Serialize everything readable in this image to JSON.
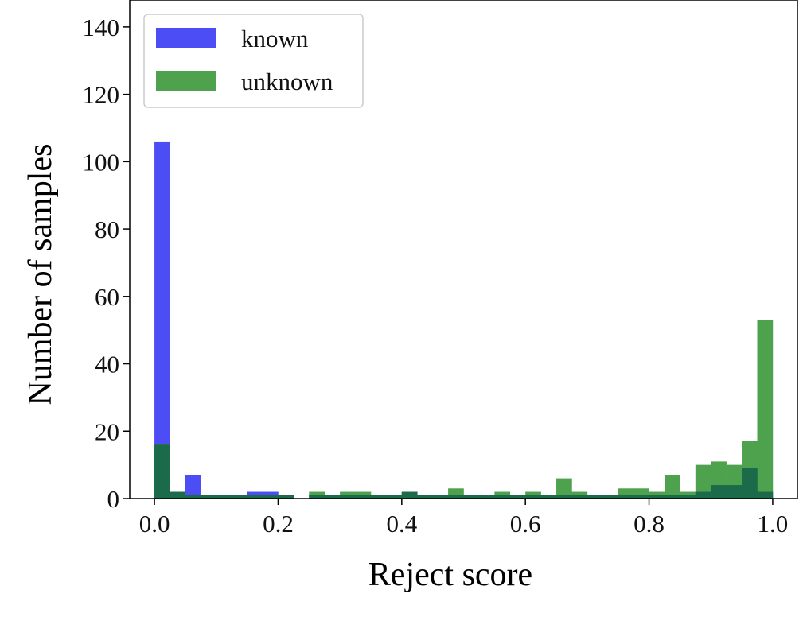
{
  "chart_data": {
    "type": "bar",
    "xlabel": "Reject score",
    "ylabel": "Number of samples",
    "xlim": [
      -0.04,
      1.04
    ],
    "ylim": [
      0,
      148
    ],
    "xticks": [
      0.0,
      0.2,
      0.4,
      0.6,
      0.8,
      1.0
    ],
    "xtick_labels": [
      "0.0",
      "0.2",
      "0.4",
      "0.6",
      "0.8",
      "1.0"
    ],
    "yticks": [
      0,
      20,
      40,
      60,
      80,
      100,
      120,
      140
    ],
    "ytick_labels": [
      "0",
      "20",
      "40",
      "60",
      "80",
      "100",
      "120",
      "140"
    ],
    "grid": false,
    "legend_position": "top-left",
    "bins": 40,
    "bin_range": [
      0,
      1
    ],
    "series": [
      {
        "name": "known",
        "color": "#4d4df5",
        "values": [
          106,
          2,
          7,
          1,
          1,
          1,
          2,
          2,
          1,
          0,
          1,
          1,
          1,
          1,
          1,
          1,
          2,
          1,
          1,
          1,
          1,
          1,
          1,
          1,
          1,
          1,
          1,
          1,
          1,
          1,
          1,
          1,
          1,
          1,
          1,
          2,
          4,
          4,
          9,
          2
        ]
      },
      {
        "name": "unknown",
        "color": "#4ea24e",
        "values": [
          16,
          2,
          1,
          1,
          1,
          1,
          1,
          1,
          1,
          0,
          2,
          1,
          2,
          2,
          1,
          1,
          2,
          1,
          1,
          3,
          1,
          1,
          2,
          1,
          2,
          1,
          6,
          2,
          1,
          1,
          3,
          3,
          2,
          7,
          2,
          10,
          11,
          10,
          17,
          53
        ]
      }
    ],
    "overlap_color": "#1b6b4b"
  }
}
